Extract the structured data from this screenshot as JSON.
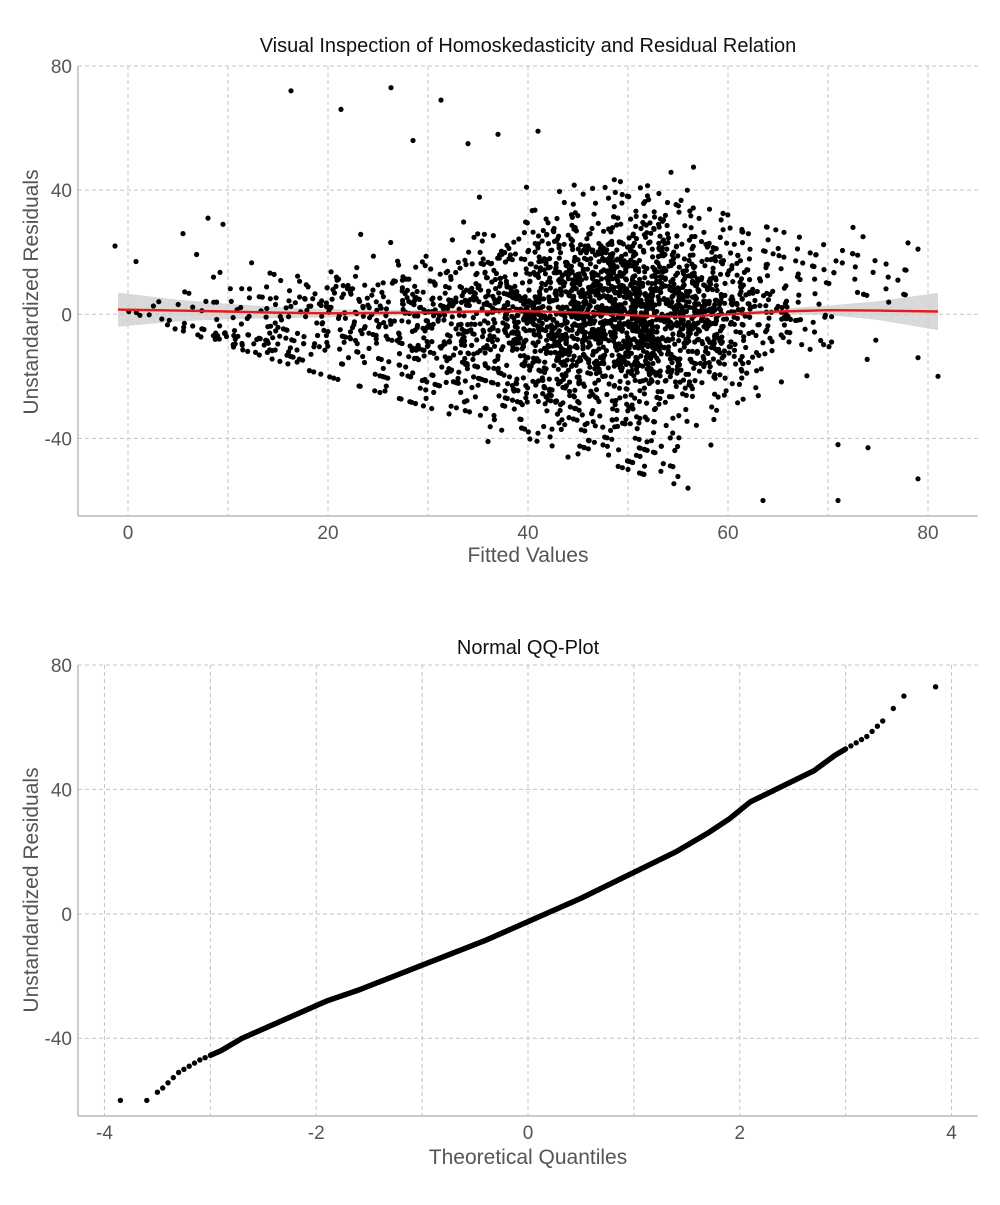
{
  "chart_data": [
    {
      "type": "scatter",
      "title": "Visual Inspection of Homoskedasticity and Residual Relation",
      "xlabel": "Fitted Values",
      "ylabel": "Unstandardized Residuals",
      "xlim": [
        -5,
        85
      ],
      "ylim": [
        -65,
        80
      ],
      "x_ticks": [
        0,
        20,
        40,
        60,
        80
      ],
      "y_ticks": [
        -40,
        0,
        40,
        80
      ],
      "grid": true,
      "point_color": "#000000",
      "smooth_color": "#e41a1c",
      "band_color": "#cccccc",
      "smooth": {
        "x": [
          -1,
          5,
          10,
          15,
          20,
          25,
          30,
          35,
          40,
          45,
          50,
          55,
          60,
          65,
          70,
          75,
          81
        ],
        "y": [
          1.5,
          1.2,
          0.9,
          0.5,
          0.3,
          0.4,
          0.6,
          0.9,
          1.0,
          0.6,
          -0.3,
          -0.8,
          0.0,
          0.9,
          1.3,
          1.2,
          0.9
        ],
        "se": [
          5.5,
          3.5,
          2.5,
          1.8,
          1.3,
          1.0,
          0.8,
          0.6,
          0.5,
          0.5,
          0.5,
          0.5,
          0.6,
          0.9,
          1.5,
          3.0,
          6.0
        ]
      },
      "outliers": [
        {
          "x": 16.3,
          "y": 72
        },
        {
          "x": 21.3,
          "y": 66
        },
        {
          "x": 26.3,
          "y": 73
        },
        {
          "x": 31.3,
          "y": 69
        },
        {
          "x": 41,
          "y": 59
        },
        {
          "x": -1.3,
          "y": 22
        },
        {
          "x": 0.8,
          "y": 17
        },
        {
          "x": 81,
          "y": -20
        },
        {
          "x": 79,
          "y": -53
        },
        {
          "x": 63.5,
          "y": -60
        },
        {
          "x": 71,
          "y": -60
        },
        {
          "x": 56,
          "y": -56
        },
        {
          "x": 8,
          "y": 31
        },
        {
          "x": 9.5,
          "y": 29
        },
        {
          "x": 78,
          "y": 23
        },
        {
          "x": 79,
          "y": 21
        },
        {
          "x": 72.5,
          "y": 28
        },
        {
          "x": 73.5,
          "y": 25
        },
        {
          "x": 74,
          "y": -43
        },
        {
          "x": 71,
          "y": -42
        },
        {
          "x": 79,
          "y": -14
        },
        {
          "x": 50,
          "y": -50
        },
        {
          "x": 44,
          "y": -46
        },
        {
          "x": 36,
          "y": -41
        },
        {
          "x": 37,
          "y": 58
        },
        {
          "x": 34,
          "y": 55
        },
        {
          "x": 28.5,
          "y": 56
        },
        {
          "x": 5.5,
          "y": 26
        }
      ]
    },
    {
      "type": "scatter",
      "title": "Normal QQ-Plot",
      "xlabel": "Theoretical Quantiles",
      "ylabel": "Unstandardized Residuals",
      "xlim": [
        -4.25,
        4.25
      ],
      "ylim": [
        -65,
        80
      ],
      "x_ticks": [
        -4,
        -2,
        0,
        2,
        4
      ],
      "y_ticks": [
        -40,
        0,
        40,
        80
      ],
      "grid": true,
      "point_color": "#000000",
      "curve": {
        "x": [
          -3.85,
          -3.6,
          -3.45,
          -3.3,
          -3.1,
          -2.9,
          -2.7,
          -2.5,
          -2.3,
          -2.1,
          -1.9,
          -1.6,
          -1.3,
          -1.0,
          -0.7,
          -0.4,
          -0.1,
          0.0,
          0.2,
          0.5,
          0.8,
          1.1,
          1.4,
          1.7,
          1.9,
          2.1,
          2.4,
          2.7,
          2.9,
          3.05,
          3.2,
          3.35,
          3.55,
          3.85
        ],
        "y": [
          -60,
          -60,
          -56,
          -51,
          -47,
          -44,
          -40,
          -37,
          -34,
          -31,
          -28,
          -24.5,
          -20.5,
          -16.5,
          -12.5,
          -8.5,
          -4,
          -2.5,
          0.5,
          5,
          10,
          15,
          20,
          26,
          30.5,
          36,
          41,
          46,
          51,
          54,
          57,
          62,
          70,
          73
        ]
      }
    }
  ]
}
